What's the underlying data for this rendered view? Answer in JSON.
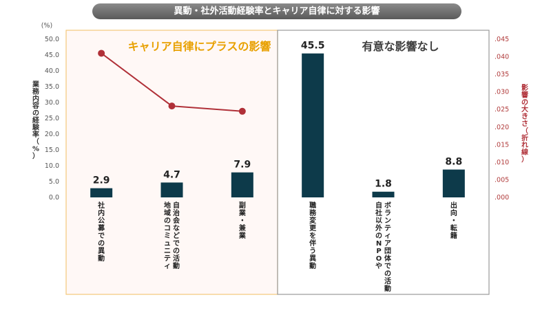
{
  "title": "異動・社外活動経験率とキャリア自律に対する影響",
  "chart_data": {
    "type": "bar",
    "categories": [
      "社内公募での異動",
      "地域のコミュニティ自治会などでの活動",
      "副業・兼業",
      "職務変更を伴う異動",
      "自社以外のNPOやボランティア団体での活動",
      "出向・転籍"
    ],
    "category_lines": [
      [
        "社内公募での異動"
      ],
      [
        "地域のコミュニティ",
        "自治会などでの活動"
      ],
      [
        "副業・兼業"
      ],
      [
        "職務変更を伴う異動"
      ],
      [
        "自社以外のNPOや",
        "ボランティア団体での活動"
      ],
      [
        "出向・転籍"
      ]
    ],
    "bar_values": [
      2.9,
      4.7,
      7.9,
      45.5,
      1.8,
      8.8
    ],
    "bar_labels": [
      "2.9",
      "4.7",
      "7.9",
      "45.5",
      "1.8",
      "8.8"
    ],
    "line_values": [
      0.041,
      0.026,
      0.0245,
      null,
      null,
      null
    ],
    "ylabel": "業務内容の経験率（%）",
    "y_unit": "(%)",
    "ylim": [
      0,
      50
    ],
    "yticks": [
      "0.0",
      "5.0",
      "10.0",
      "15.0",
      "20.0",
      "25.0",
      "30.0",
      "35.0",
      "40.0",
      "45.0",
      "50.0"
    ],
    "y2label": "影響の大きさ（折れ線）",
    "y2lim": [
      0,
      0.045
    ],
    "y2ticks": [
      ".000",
      ".005",
      ".010",
      ".015",
      ".020",
      ".025",
      ".030",
      ".035",
      ".040",
      ".045"
    ],
    "annotations": {
      "positive": "キャリア自律にプラスの影響",
      "none": "有意な影響なし"
    },
    "colors": {
      "bar": "#0d3a4a",
      "line": "#b03038",
      "positive_text": "#e8a000",
      "positive_border": "#f2c77a",
      "positive_fill": "#fff8f6",
      "none_text": "#404040",
      "none_border": "#999999"
    },
    "grid": false,
    "legend": "none"
  }
}
